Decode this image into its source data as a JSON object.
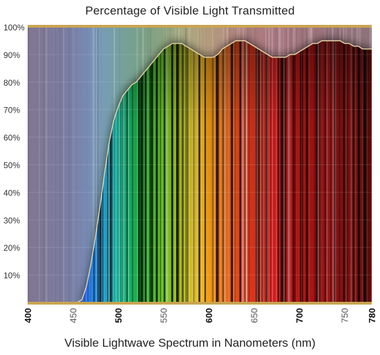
{
  "chart_data": {
    "type": "area",
    "title": "Percentage of Visible Light Transmitted",
    "xlabel": "Visible Lightwave Spectrum in Nanometers (nm)",
    "ylabel": "",
    "xlim": [
      400,
      780
    ],
    "ylim": [
      0,
      100
    ],
    "x_ticks": [
      {
        "value": 400,
        "label": "400",
        "bold": true
      },
      {
        "value": 450,
        "label": "450",
        "bold": false
      },
      {
        "value": 500,
        "label": "500",
        "bold": true
      },
      {
        "value": 550,
        "label": "550",
        "bold": false
      },
      {
        "value": 600,
        "label": "600",
        "bold": true
      },
      {
        "value": 650,
        "label": "650",
        "bold": false
      },
      {
        "value": 700,
        "label": "700",
        "bold": true
      },
      {
        "value": 750,
        "label": "750",
        "bold": false
      },
      {
        "value": 780,
        "label": "780",
        "bold": true
      }
    ],
    "y_ticks": [
      {
        "value": 10,
        "label": "10%"
      },
      {
        "value": 20,
        "label": "20%"
      },
      {
        "value": 30,
        "label": "30%"
      },
      {
        "value": 40,
        "label": "40%"
      },
      {
        "value": 50,
        "label": "50%"
      },
      {
        "value": 60,
        "label": "60%"
      },
      {
        "value": 70,
        "label": "70%"
      },
      {
        "value": 80,
        "label": "80%"
      },
      {
        "value": 90,
        "label": "90%"
      },
      {
        "value": 100,
        "label": "100%"
      }
    ],
    "series": [
      {
        "x": [
          400,
          450,
          455,
          460,
          465,
          470,
          475,
          480,
          485,
          490,
          495,
          500,
          505,
          510,
          515,
          520,
          525,
          530,
          535,
          540,
          545,
          550,
          555,
          560,
          565,
          570,
          575,
          580,
          585,
          590,
          595,
          600,
          605,
          610,
          615,
          620,
          625,
          630,
          635,
          640,
          645,
          650,
          655,
          660,
          665,
          670,
          675,
          680,
          685,
          690,
          695,
          700,
          705,
          710,
          715,
          720,
          725,
          730,
          735,
          740,
          745,
          750,
          755,
          760,
          765,
          770,
          775,
          780
        ],
        "y": [
          0,
          0,
          0,
          1,
          6,
          14,
          24,
          35,
          47,
          58,
          66,
          71,
          75,
          77,
          79,
          80,
          82,
          84,
          86,
          88,
          90,
          92,
          93,
          94,
          94,
          94,
          93,
          92,
          91,
          90,
          89,
          89,
          89,
          90,
          92,
          93,
          94,
          95,
          95,
          95,
          94,
          93,
          92,
          91,
          90,
          89,
          89,
          89,
          89,
          90,
          90,
          91,
          92,
          93,
          94,
          94,
          95,
          95,
          95,
          95,
          95,
          94,
          94,
          93,
          93,
          92,
          92,
          92
        ]
      }
    ],
    "grid": true,
    "legend": "none"
  },
  "colors": {
    "axis_gold": "#c9a452",
    "curve_outline": "#e6d6a6",
    "plot_background": "#9b9aa5"
  }
}
